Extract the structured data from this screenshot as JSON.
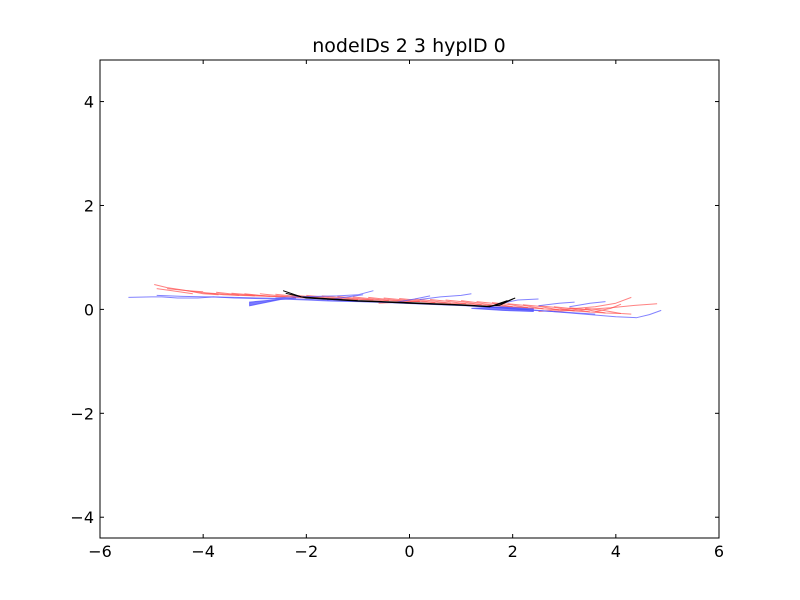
{
  "chart_data": {
    "type": "line",
    "title": "nodeIDs 2 3 hypID 0",
    "xlabel": "",
    "ylabel": "",
    "xlim": [
      -6,
      6
    ],
    "ylim": [
      -4.4,
      4.8
    ],
    "grid": false,
    "x_ticks": [
      -6,
      -4,
      -2,
      0,
      2,
      4,
      6
    ],
    "x_tick_labels": [
      "−6",
      "−4",
      "−2",
      "0",
      "2",
      "4",
      "6"
    ],
    "y_ticks": [
      -4,
      -2,
      0,
      2,
      4
    ],
    "y_tick_labels": [
      "−4",
      "−2",
      "0",
      "2",
      "4"
    ],
    "colors": {
      "red": "#ff4d4d",
      "blue": "#4d4dff",
      "black": "#000000"
    },
    "series": [
      {
        "color": "red",
        "opacity": 0.7,
        "lines": [
          [
            [
              -4.95,
              0.48
            ],
            [
              -4.7,
              0.42
            ],
            [
              -4.3,
              0.36
            ],
            [
              -4.0,
              0.34
            ]
          ],
          [
            [
              -4.7,
              0.4
            ],
            [
              -4.3,
              0.36
            ],
            [
              -4.0,
              0.3
            ],
            [
              -3.7,
              0.28
            ]
          ],
          [
            [
              -4.3,
              0.36
            ],
            [
              -4.0,
              0.32
            ],
            [
              -3.6,
              0.28
            ],
            [
              -3.3,
              0.27
            ]
          ],
          [
            [
              -4.0,
              0.32
            ],
            [
              -3.7,
              0.3
            ],
            [
              -3.3,
              0.27
            ],
            [
              -3.0,
              0.26
            ]
          ],
          [
            [
              -3.75,
              0.33
            ],
            [
              -3.4,
              0.29
            ],
            [
              -3.0,
              0.26
            ],
            [
              -2.7,
              0.25
            ]
          ],
          [
            [
              -3.45,
              0.31
            ],
            [
              -3.1,
              0.28
            ],
            [
              -2.7,
              0.25
            ],
            [
              -2.4,
              0.24
            ]
          ],
          [
            [
              -3.2,
              0.3
            ],
            [
              -2.9,
              0.27
            ],
            [
              -2.5,
              0.24
            ],
            [
              -2.2,
              0.23
            ]
          ],
          [
            [
              -2.9,
              0.3
            ],
            [
              -2.6,
              0.27
            ],
            [
              -2.2,
              0.23
            ],
            [
              -1.9,
              0.22
            ]
          ],
          [
            [
              -2.6,
              0.29
            ],
            [
              -2.3,
              0.26
            ],
            [
              -1.9,
              0.22
            ],
            [
              -1.6,
              0.21
            ]
          ],
          [
            [
              -2.3,
              0.28
            ],
            [
              -2.0,
              0.25
            ],
            [
              -1.6,
              0.21
            ],
            [
              -1.3,
              0.2
            ]
          ],
          [
            [
              -2.0,
              0.27
            ],
            [
              -1.7,
              0.24
            ],
            [
              -1.3,
              0.2
            ],
            [
              -1.0,
              0.19
            ]
          ],
          [
            [
              -1.7,
              0.26
            ],
            [
              -1.4,
              0.23
            ],
            [
              -1.0,
              0.19
            ],
            [
              -0.7,
              0.18
            ]
          ],
          [
            [
              -1.4,
              0.25
            ],
            [
              -1.1,
              0.22
            ],
            [
              -0.7,
              0.18
            ],
            [
              -0.4,
              0.17
            ]
          ],
          [
            [
              -1.1,
              0.24
            ],
            [
              -0.8,
              0.21
            ],
            [
              -0.4,
              0.17
            ],
            [
              -0.1,
              0.16
            ]
          ],
          [
            [
              -0.8,
              0.23
            ],
            [
              -0.5,
              0.2
            ],
            [
              -0.1,
              0.16
            ],
            [
              0.2,
              0.15
            ]
          ],
          [
            [
              -0.5,
              0.22
            ],
            [
              -0.2,
              0.19
            ],
            [
              0.2,
              0.15
            ],
            [
              0.5,
              0.13
            ]
          ],
          [
            [
              -0.2,
              0.21
            ],
            [
              0.1,
              0.18
            ],
            [
              0.5,
              0.13
            ],
            [
              0.8,
              0.12
            ]
          ],
          [
            [
              0.1,
              0.2
            ],
            [
              0.4,
              0.17
            ],
            [
              0.8,
              0.12
            ],
            [
              1.1,
              0.11
            ]
          ],
          [
            [
              0.4,
              0.19
            ],
            [
              0.7,
              0.16
            ],
            [
              1.1,
              0.11
            ],
            [
              1.4,
              0.09
            ]
          ],
          [
            [
              0.7,
              0.18
            ],
            [
              1.0,
              0.15
            ],
            [
              1.4,
              0.09
            ],
            [
              1.7,
              0.07
            ]
          ],
          [
            [
              1.0,
              0.17
            ],
            [
              1.3,
              0.13
            ],
            [
              1.7,
              0.07
            ],
            [
              2.0,
              0.05
            ]
          ],
          [
            [
              1.3,
              0.15
            ],
            [
              1.6,
              0.12
            ],
            [
              2.0,
              0.05
            ],
            [
              2.3,
              0.03
            ]
          ],
          [
            [
              1.6,
              0.13
            ],
            [
              1.9,
              0.1
            ],
            [
              2.3,
              0.03
            ],
            [
              2.6,
              0.01
            ]
          ],
          [
            [
              1.9,
              0.11
            ],
            [
              2.2,
              0.08
            ],
            [
              2.6,
              0.01
            ],
            [
              2.9,
              -0.01
            ]
          ],
          [
            [
              2.2,
              0.09
            ],
            [
              2.5,
              0.06
            ],
            [
              2.9,
              -0.01
            ],
            [
              3.2,
              -0.03
            ]
          ],
          [
            [
              2.5,
              0.07
            ],
            [
              2.8,
              0.04
            ],
            [
              3.2,
              -0.03
            ],
            [
              3.5,
              -0.05
            ]
          ],
          [
            [
              2.8,
              0.05
            ],
            [
              3.1,
              0.02
            ],
            [
              3.5,
              -0.05
            ],
            [
              3.8,
              -0.07
            ]
          ],
          [
            [
              3.1,
              0.03
            ],
            [
              3.4,
              0.0
            ],
            [
              3.8,
              -0.07
            ],
            [
              4.1,
              -0.08
            ]
          ],
          [
            [
              3.4,
              0.02
            ],
            [
              3.7,
              -0.01
            ],
            [
              4.1,
              -0.08
            ],
            [
              4.3,
              -0.09
            ]
          ],
          [
            [
              2.5,
              -0.04
            ],
            [
              3.0,
              0.0
            ],
            [
              3.6,
              0.05
            ],
            [
              4.0,
              0.12
            ],
            [
              4.3,
              0.23
            ]
          ],
          [
            [
              2.8,
              -0.04
            ],
            [
              3.3,
              -0.01
            ],
            [
              3.9,
              0.03
            ],
            [
              4.4,
              0.08
            ],
            [
              4.8,
              0.11
            ]
          ],
          [
            [
              -4.9,
              0.4
            ],
            [
              -4.6,
              0.36
            ],
            [
              -4.2,
              0.3
            ]
          ],
          [
            [
              -0.6,
              0.12
            ],
            [
              -0.2,
              0.14
            ],
            [
              0.2,
              0.16
            ]
          ],
          [
            [
              3.6,
              -0.04
            ],
            [
              3.9,
              0.02
            ],
            [
              4.1,
              0.1
            ]
          ]
        ]
      },
      {
        "color": "blue",
        "opacity": 0.7,
        "lines": [
          [
            [
              -5.45,
              0.23
            ],
            [
              -5.0,
              0.24
            ],
            [
              -4.8,
              0.24
            ],
            [
              -4.5,
              0.22
            ],
            [
              -4.1,
              0.22
            ],
            [
              -3.8,
              0.24
            ],
            [
              -3.4,
              0.22
            ],
            [
              -3.0,
              0.21
            ],
            [
              -2.5,
              0.2
            ],
            [
              -2.0,
              0.18
            ],
            [
              -1.5,
              0.16
            ],
            [
              -1.0,
              0.15
            ],
            [
              -0.5,
              0.14
            ],
            [
              0.0,
              0.12
            ],
            [
              0.5,
              0.1
            ],
            [
              1.0,
              0.08
            ],
            [
              1.5,
              0.05
            ],
            [
              2.0,
              0.02
            ],
            [
              2.5,
              -0.02
            ],
            [
              3.0,
              -0.06
            ],
            [
              3.5,
              -0.1
            ],
            [
              4.0,
              -0.14
            ],
            [
              4.4,
              -0.16
            ],
            [
              4.65,
              -0.1
            ],
            [
              4.88,
              -0.02
            ]
          ],
          [
            [
              -4.9,
              0.27
            ],
            [
              -4.4,
              0.25
            ],
            [
              -3.9,
              0.24
            ],
            [
              -3.4,
              0.23
            ],
            [
              -2.9,
              0.22
            ],
            [
              -2.4,
              0.21
            ],
            [
              -1.9,
              0.19
            ],
            [
              -1.4,
              0.17
            ],
            [
              -0.9,
              0.15
            ],
            [
              -0.4,
              0.13
            ],
            [
              0.1,
              0.11
            ],
            [
              0.6,
              0.09
            ],
            [
              1.1,
              0.07
            ],
            [
              1.6,
              0.04
            ],
            [
              2.1,
              0.0
            ],
            [
              2.6,
              -0.03
            ],
            [
              3.1,
              -0.06
            ],
            [
              3.6,
              -0.09
            ]
          ],
          [
            [
              -2.6,
              0.22
            ],
            [
              -2.2,
              0.24
            ],
            [
              -1.8,
              0.25
            ],
            [
              -1.4,
              0.26
            ],
            [
              -1.0,
              0.28
            ],
            [
              -0.7,
              0.36
            ]
          ],
          [
            [
              0.2,
              0.19
            ],
            [
              0.6,
              0.24
            ],
            [
              1.0,
              0.27
            ],
            [
              1.2,
              0.3
            ]
          ],
          [
            [
              1.8,
              0.12
            ],
            [
              2.1,
              0.18
            ],
            [
              2.5,
              0.2
            ]
          ],
          [
            [
              2.5,
              0.07
            ],
            [
              2.9,
              0.12
            ],
            [
              3.2,
              0.14
            ]
          ],
          [
            [
              3.1,
              0.05
            ],
            [
              3.5,
              0.12
            ],
            [
              3.8,
              0.15
            ]
          ],
          [
            [
              -0.3,
              0.13
            ],
            [
              0.1,
              0.2
            ],
            [
              0.4,
              0.26
            ]
          ],
          [
            [
              -1.6,
              0.18
            ],
            [
              -1.2,
              0.24
            ],
            [
              -0.9,
              0.28
            ]
          ]
        ]
      },
      {
        "color": "black",
        "opacity": 1,
        "lines": [
          [
            [
              -2.45,
              0.36
            ],
            [
              -2.1,
              0.24
            ],
            [
              -1.5,
              0.2
            ],
            [
              -1.0,
              0.17
            ],
            [
              -0.5,
              0.15
            ],
            [
              0.0,
              0.13
            ],
            [
              0.5,
              0.11
            ],
            [
              1.0,
              0.09
            ],
            [
              1.5,
              0.06
            ],
            [
              1.75,
              0.08
            ],
            [
              2.0,
              0.2
            ]
          ],
          [
            [
              -2.4,
              0.31
            ],
            [
              -2.0,
              0.22
            ],
            [
              -1.5,
              0.19
            ],
            [
              -1.0,
              0.16
            ],
            [
              -0.5,
              0.14
            ],
            [
              0.0,
              0.12
            ],
            [
              0.5,
              0.1
            ],
            [
              1.0,
              0.08
            ],
            [
              1.55,
              0.05
            ],
            [
              1.8,
              0.12
            ],
            [
              2.05,
              0.22
            ]
          ],
          [
            [
              1.55,
              0.05
            ],
            [
              1.75,
              0.12
            ],
            [
              1.9,
              0.17
            ]
          ]
        ]
      }
    ],
    "filled_patches": [
      {
        "color": "blue",
        "opacity": 0.75,
        "points": [
          [
            -3.1,
            0.07
          ],
          [
            -2.5,
            0.19
          ],
          [
            -2.2,
            0.22
          ],
          [
            -2.9,
            0.16
          ],
          [
            -3.1,
            0.14
          ]
        ]
      },
      {
        "color": "blue",
        "opacity": 0.75,
        "points": [
          [
            1.2,
            0.02
          ],
          [
            1.8,
            -0.02
          ],
          [
            2.4,
            -0.04
          ],
          [
            2.4,
            0.02
          ],
          [
            1.8,
            0.05
          ]
        ]
      }
    ]
  }
}
